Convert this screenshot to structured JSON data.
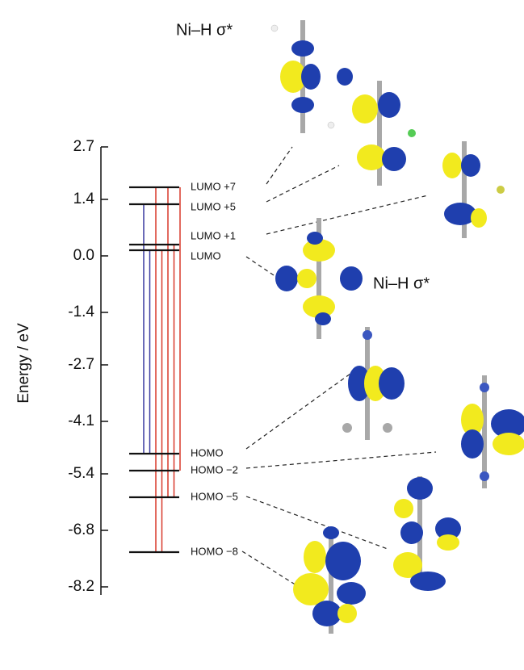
{
  "chart_data": {
    "type": "levels",
    "ylabel": "Energy / eV",
    "ylim": [
      -8.4,
      2.7
    ],
    "yticks": [
      2.7,
      1.4,
      {
        "value": 0,
        "label": "0.0"
      },
      -1.4,
      -2.7,
      -4.1,
      -5.4,
      -6.8,
      -8.2
    ],
    "levels": [
      {
        "label": "LUMO +7",
        "value": 1.7
      },
      {
        "label": "LUMO +5",
        "value": 1.28
      },
      {
        "label": "LUMO +1",
        "value": 0.28
      },
      {
        "label": "LUMO",
        "value": 0.14
      },
      {
        "label": "HOMO",
        "value": -4.9
      },
      {
        "label": "HOMO −2",
        "value": -5.32
      },
      {
        "label": "HOMO −5",
        "value": -5.98
      },
      {
        "label": "HOMO −8",
        "value": -7.34
      }
    ],
    "level_color": "#111111",
    "transitions": [
      {
        "from": -4.9,
        "to": 1.28,
        "color": "#3a3aa0"
      },
      {
        "from": -4.9,
        "to": 0.14,
        "color": "#3a3aa0"
      },
      {
        "from": -7.34,
        "to": 1.7,
        "color": "#d8382a"
      },
      {
        "from": -7.34,
        "to": 0.14,
        "color": "#d8382a"
      },
      {
        "from": -5.98,
        "to": 1.7,
        "color": "#d8382a"
      },
      {
        "from": -5.98,
        "to": 0.28,
        "color": "#d8382a"
      },
      {
        "from": -5.32,
        "to": 1.7,
        "color": "#d8382a"
      }
    ],
    "annotations": [
      "Ni–H σ*",
      "Ni–H σ*"
    ]
  }
}
